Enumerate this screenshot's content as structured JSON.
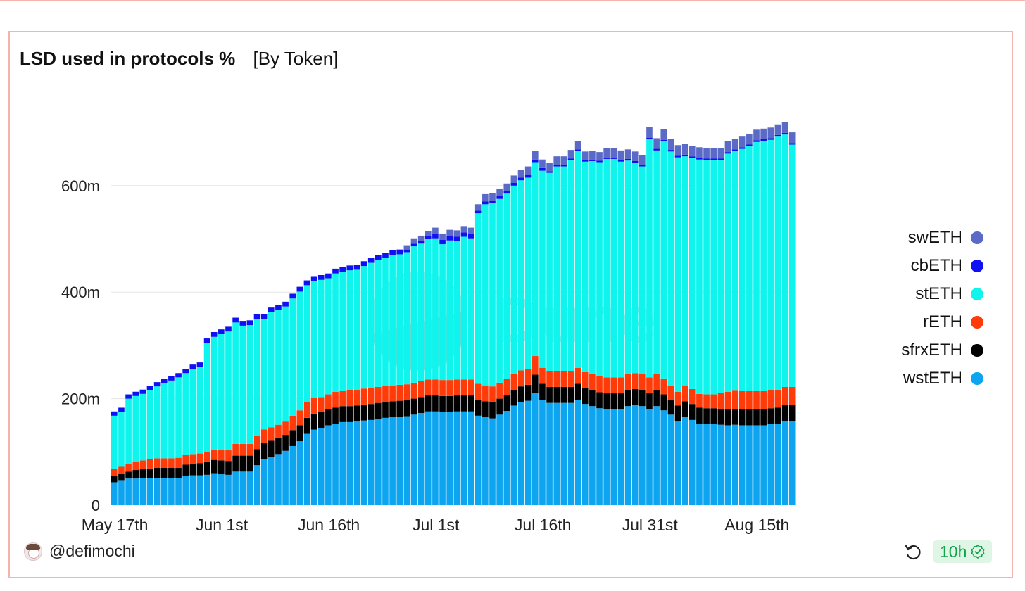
{
  "chart_data": {
    "type": "bar",
    "stacked": true,
    "title": "LSD used in protocols %",
    "subtitle": "[By Token]",
    "x_tick_labels": [
      "May 17th",
      "Jun 1st",
      "Jun 16th",
      "Jul 1st",
      "Jul 16th",
      "Jul 31st",
      "Aug 15th"
    ],
    "x_tick_indices": [
      0,
      15,
      30,
      45,
      60,
      75,
      90
    ],
    "y_ticks": [
      0,
      200,
      400,
      600
    ],
    "y_tick_labels": [
      "0",
      "200m",
      "400m",
      "600m"
    ],
    "ylim": [
      0,
      780
    ],
    "grid": true,
    "legend_position": "right",
    "series": [
      {
        "name": "wstETH",
        "color": "#0ea5f0",
        "values": [
          43,
          47,
          50,
          50,
          51,
          51,
          51,
          51,
          51,
          51,
          55,
          56,
          56,
          57,
          60,
          58,
          57,
          63,
          63,
          63,
          75,
          87,
          91,
          96,
          102,
          111,
          120,
          134,
          142,
          145,
          150,
          153,
          156,
          156,
          157,
          159,
          160,
          162,
          164,
          165,
          166,
          167,
          170,
          173,
          176,
          176,
          175,
          175,
          176,
          176,
          176,
          168,
          165,
          163,
          170,
          177,
          187,
          193,
          196,
          210,
          198,
          192,
          192,
          192,
          192,
          198,
          190,
          186,
          182,
          180,
          180,
          180,
          186,
          188,
          186,
          180,
          186,
          178,
          170,
          157,
          165,
          160,
          153,
          152,
          152,
          151,
          150,
          151,
          150,
          150,
          150,
          150,
          152,
          153,
          158,
          158
        ]
      },
      {
        "name": "sfrxETH",
        "color": "#000000",
        "values": [
          12,
          12,
          13,
          16,
          17,
          18,
          19,
          19,
          19,
          19,
          21,
          22,
          23,
          25,
          25,
          26,
          26,
          30,
          30,
          30,
          30,
          30,
          30,
          30,
          30,
          30,
          30,
          30,
          30,
          30,
          30,
          30,
          30,
          30,
          30,
          30,
          30,
          30,
          30,
          30,
          30,
          30,
          30,
          30,
          30,
          30,
          30,
          30,
          30,
          30,
          30,
          30,
          30,
          30,
          30,
          30,
          30,
          30,
          30,
          35,
          30,
          30,
          30,
          30,
          30,
          30,
          30,
          30,
          30,
          30,
          30,
          30,
          30,
          30,
          30,
          30,
          30,
          30,
          28,
          30,
          30,
          30,
          30,
          30,
          30,
          30,
          30,
          30,
          30,
          30,
          30,
          30,
          30,
          30,
          30,
          30
        ]
      },
      {
        "name": "rETH",
        "color": "#ff3b0a",
        "values": [
          13,
          13,
          14,
          15,
          16,
          17,
          18,
          18,
          18,
          19,
          18,
          18,
          18,
          18,
          19,
          20,
          20,
          22,
          22,
          22,
          25,
          25,
          25,
          25,
          25,
          27,
          28,
          29,
          29,
          28,
          28,
          30,
          28,
          30,
          30,
          30,
          30,
          30,
          30,
          30,
          30,
          30,
          30,
          30,
          30,
          30,
          30,
          30,
          30,
          30,
          30,
          30,
          30,
          30,
          30,
          30,
          30,
          30,
          30,
          35,
          30,
          30,
          30,
          30,
          30,
          30,
          30,
          30,
          30,
          30,
          30,
          30,
          30,
          30,
          30,
          30,
          30,
          30,
          26,
          26,
          30,
          28,
          26,
          26,
          26,
          30,
          33,
          34,
          34,
          34,
          34,
          34,
          34,
          34,
          34,
          34
        ]
      },
      {
        "name": "stETH",
        "color": "#0ff5ee",
        "values": [
          100,
          103,
          123,
          124,
          125,
          130,
          135,
          141,
          146,
          151,
          154,
          160,
          163,
          204,
          212,
          217,
          223,
          228,
          222,
          223,
          220,
          208,
          216,
          216,
          216,
          220,
          223,
          220,
          220,
          220,
          218,
          222,
          224,
          225,
          225,
          230,
          235,
          238,
          240,
          245,
          245,
          248,
          256,
          258,
          264,
          265,
          255,
          262,
          260,
          268,
          265,
          320,
          340,
          344,
          345,
          348,
          353,
          357,
          359,
          364,
          370,
          372,
          384,
          384,
          396,
          407,
          395,
          400,
          402,
          410,
          410,
          405,
          401,
          395,
          390,
          447,
          420,
          445,
          440,
          440,
          430,
          434,
          440,
          440,
          440,
          437,
          447,
          450,
          455,
          460,
          468,
          470,
          470,
          475,
          474,
          455
        ]
      },
      {
        "name": "cbETH",
        "color": "#1010f5",
        "values": [
          8,
          8,
          8,
          8,
          8,
          8,
          8,
          8,
          8,
          8,
          8,
          8,
          8,
          9,
          9,
          9,
          9,
          9,
          9,
          9,
          9,
          9,
          9,
          9,
          9,
          9,
          9,
          9,
          9,
          9,
          9,
          9,
          9,
          9,
          9,
          9,
          9,
          9,
          9,
          9,
          9,
          5,
          5,
          5,
          5,
          8,
          8,
          8,
          8,
          8,
          8,
          5,
          5,
          5,
          5,
          5,
          5,
          5,
          5,
          5,
          5,
          3,
          3,
          3,
          3,
          3,
          3,
          3,
          3,
          3,
          3,
          3,
          3,
          3,
          3,
          3,
          3,
          3,
          3,
          3,
          3,
          3,
          3,
          3,
          3,
          3,
          3,
          3,
          3,
          3,
          3,
          3,
          3,
          3,
          3,
          3
        ]
      },
      {
        "name": "swETH",
        "color": "#5b6ac6",
        "values": [
          0,
          0,
          0,
          0,
          0,
          0,
          0,
          0,
          0,
          0,
          0,
          0,
          0,
          0,
          0,
          0,
          0,
          0,
          0,
          0,
          0,
          0,
          0,
          0,
          0,
          0,
          0,
          0,
          0,
          0,
          0,
          0,
          0,
          0,
          0,
          0,
          0,
          0,
          0,
          0,
          0,
          8,
          10,
          10,
          10,
          12,
          12,
          12,
          12,
          12,
          12,
          12,
          14,
          14,
          14,
          14,
          14,
          15,
          16,
          16,
          16,
          16,
          16,
          16,
          16,
          16,
          16,
          16,
          16,
          18,
          18,
          18,
          18,
          18,
          18,
          20,
          20,
          20,
          20,
          20,
          20,
          20,
          20,
          20,
          20,
          20,
          20,
          20,
          20,
          20,
          20,
          20,
          20,
          20,
          20,
          20
        ]
      }
    ]
  },
  "legend": {
    "items": [
      {
        "name": "swETH",
        "color": "#5b6ac6"
      },
      {
        "name": "cbETH",
        "color": "#1010f5"
      },
      {
        "name": "stETH",
        "color": "#0ff5ee"
      },
      {
        "name": "rETH",
        "color": "#ff3b0a"
      },
      {
        "name": "sfrxETH",
        "color": "#000000"
      },
      {
        "name": "wstETH",
        "color": "#0ea5f0"
      }
    ]
  },
  "footer": {
    "author": "@defimochi",
    "freshness": "10h",
    "refresh_icon": "refresh-icon",
    "check_icon": "check-badge-icon"
  },
  "watermark": {
    "text": "Dune",
    "color": "#12b3b0"
  }
}
